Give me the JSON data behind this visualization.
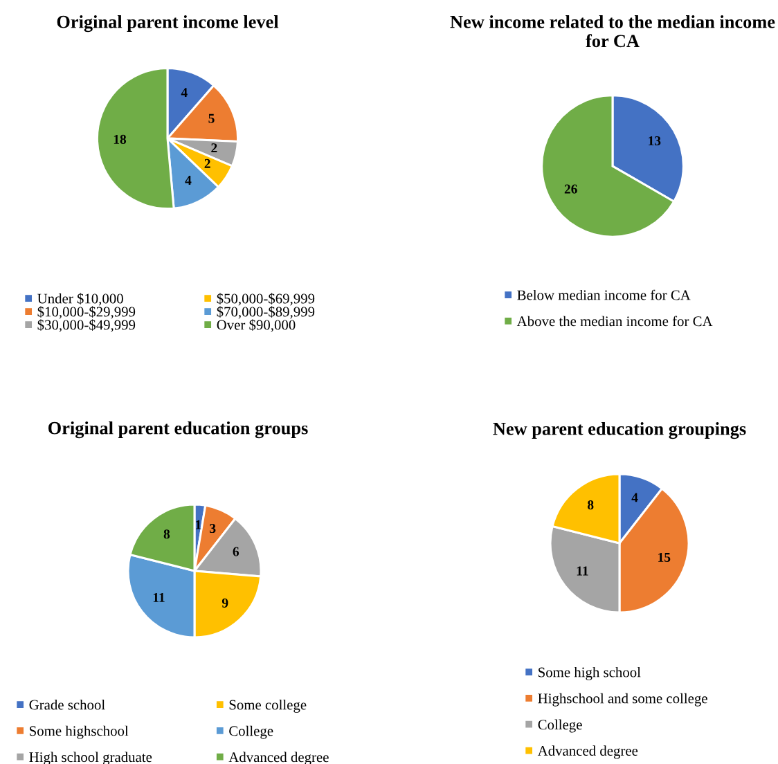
{
  "chart_data": [
    {
      "type": "pie",
      "title": "Original parent income level",
      "categories": [
        "Under $10,000",
        "$10,000-$29,999",
        "$30,000-$49,999",
        "$50,000-$69,999",
        "$70,000-$89,999",
        "Over $90,000"
      ],
      "values": [
        4,
        5,
        2,
        2,
        4,
        18
      ],
      "colors": [
        "#4472c4",
        "#ed7d31",
        "#a5a5a5",
        "#ffc000",
        "#5b9bd5",
        "#70ad47"
      ],
      "data_labels": true,
      "legend": "bottom"
    },
    {
      "type": "pie",
      "title": "New income related to the median income for CA",
      "categories": [
        "Below median income for CA",
        "Above the median income for CA"
      ],
      "values": [
        13,
        26
      ],
      "colors": [
        "#4472c4",
        "#70ad47"
      ],
      "data_labels": true,
      "legend": "bottom"
    },
    {
      "type": "pie",
      "title": "Original parent education groups",
      "categories": [
        "Grade school",
        "Some highschool",
        "High school graduate",
        "Some college",
        "College",
        "Advanced degree"
      ],
      "values": [
        1,
        3,
        6,
        9,
        11,
        8
      ],
      "colors": [
        "#4472c4",
        "#ed7d31",
        "#a5a5a5",
        "#ffc000",
        "#5b9bd5",
        "#70ad47"
      ],
      "data_labels": true,
      "legend": "bottom"
    },
    {
      "type": "pie",
      "title": "New parent education groupings",
      "categories": [
        "Some high school",
        "Highschool and some college",
        "College",
        "Advanced degree"
      ],
      "values": [
        4,
        15,
        11,
        8
      ],
      "colors": [
        "#4472c4",
        "#ed7d31",
        "#a5a5a5",
        "#ffc000"
      ],
      "data_labels": true,
      "legend": "bottom"
    }
  ]
}
